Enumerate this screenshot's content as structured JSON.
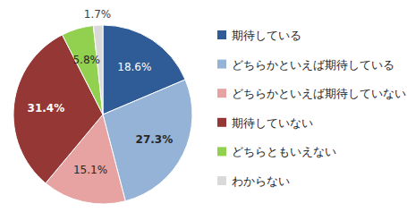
{
  "chart_data": {
    "type": "pie",
    "categories": [
      "期待している",
      "どちらかといえば期待している",
      "どちらかといえば期待していない",
      "期待していない",
      "どちらともいえない",
      "わからない"
    ],
    "values": [
      18.6,
      27.3,
      15.1,
      31.4,
      5.8,
      1.7
    ],
    "value_labels": [
      "18.6%",
      "27.3%",
      "15.1%",
      "31.4%",
      "5.8%",
      "1.7%"
    ],
    "colors": [
      "#2f5b96",
      "#95b3d7",
      "#e6a3a2",
      "#953735",
      "#92d050",
      "#d9d9d9"
    ],
    "data_labels": true,
    "legend": "right"
  }
}
